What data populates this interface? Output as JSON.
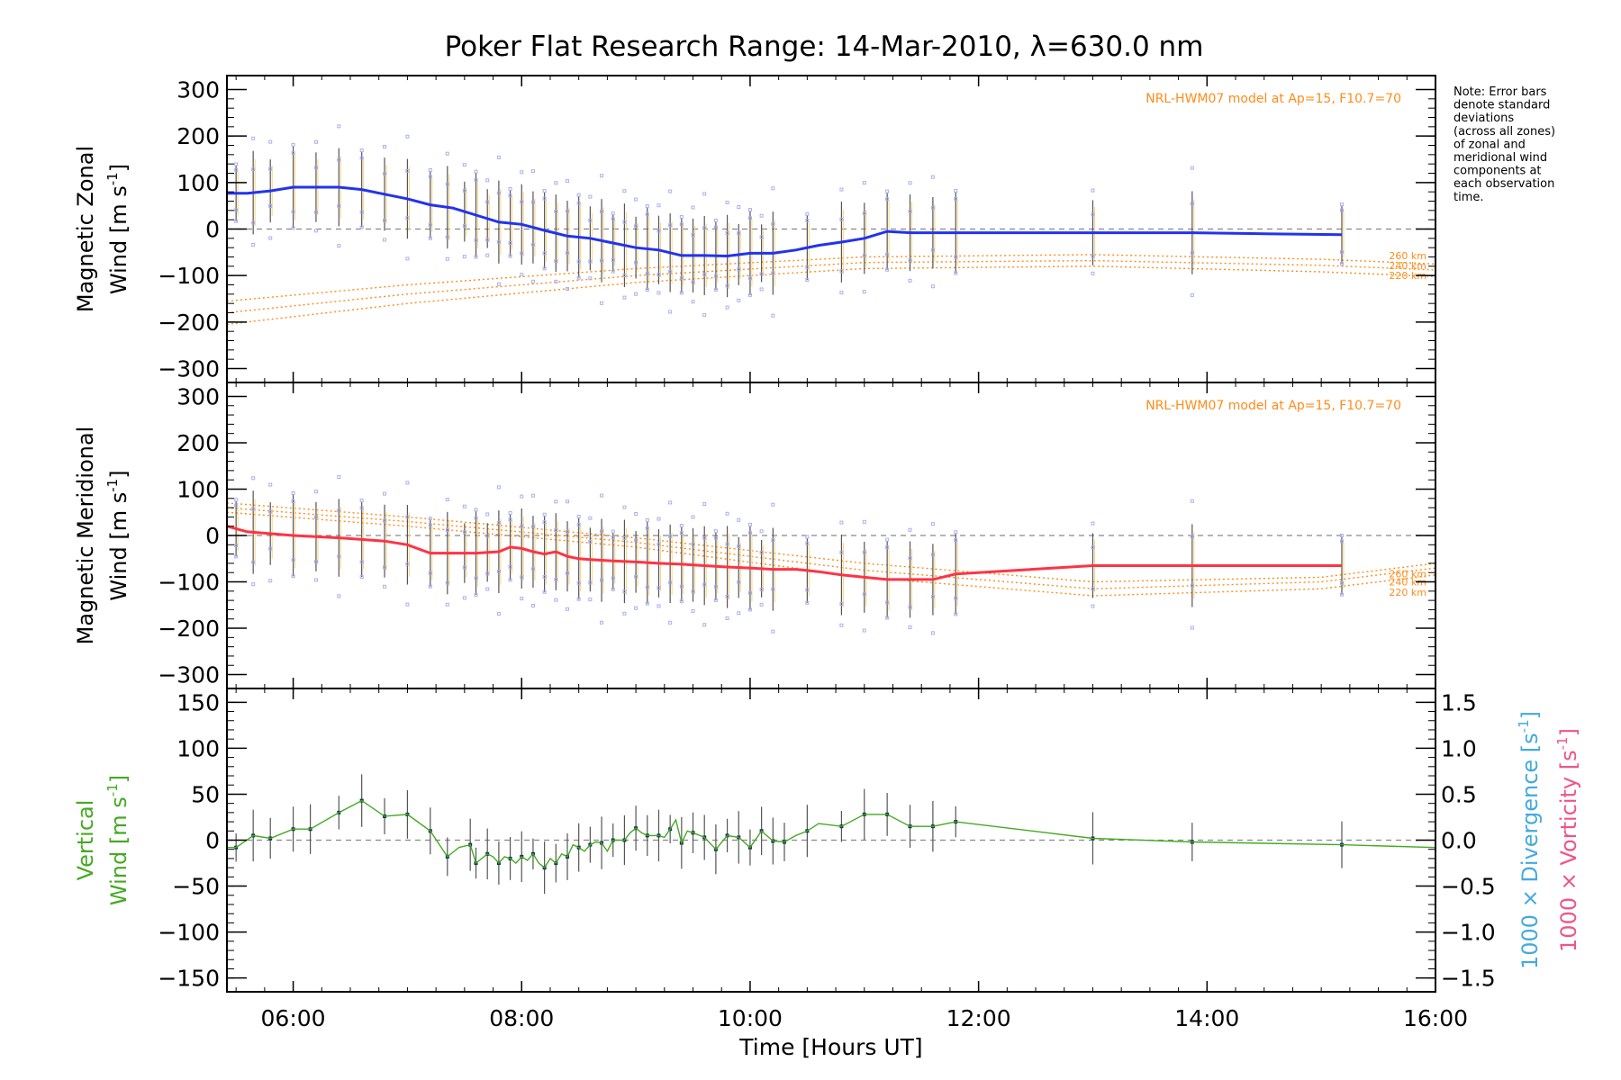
{
  "title": "Poker Flat Research Range: 14-Mar-2010, λ=630.0 nm",
  "note_lines": [
    "Note: Error bars",
    "denote standard",
    "deviations",
    "(across all zones)",
    "of zonal and",
    "meridional wind",
    "components at",
    "each observation",
    "time."
  ],
  "colors": {
    "zonal": "#2233ee",
    "meridional": "#ff3344",
    "vertical": "#44aa22",
    "model": "#ff8c1a",
    "scatter": "#aab0ee",
    "divergence": "#44aadd",
    "vorticity": "#ee5588",
    "errorbar": "#555555",
    "dashed": "#888888"
  },
  "chart_data": [
    {
      "type": "line",
      "panel": "zonal",
      "ylabel_line1": "Magnetic Zonal",
      "ylabel_line2": "Wind [m s",
      "ylabel_sup": "-1",
      "ylabel_close": "]",
      "xlim": [
        5.42,
        16.0
      ],
      "ylim": [
        -330,
        330
      ],
      "yticks": [
        300,
        200,
        100,
        0,
        -100,
        -200,
        -300
      ],
      "ytick_labels": [
        "300",
        "200",
        "100",
        "0",
        "−100",
        "−200",
        "−300"
      ],
      "model_label": "NRL-HWM07 model at Ap=15, F10.7=70",
      "model_altitude_labels": [
        "260 km",
        "240 km",
        "220 km"
      ],
      "series": {
        "name": "Magnetic Zonal Wind",
        "x": [
          5.42,
          5.6,
          5.8,
          6.0,
          6.2,
          6.4,
          6.6,
          6.8,
          7.0,
          7.2,
          7.4,
          7.6,
          7.8,
          8.0,
          8.2,
          8.4,
          8.6,
          8.8,
          9.0,
          9.2,
          9.4,
          9.6,
          9.8,
          10.0,
          10.2,
          10.4,
          10.6,
          10.8,
          11.0,
          11.2,
          11.4,
          11.6,
          11.8,
          13.0,
          13.87,
          14.5,
          15.18
        ],
        "y": [
          77,
          77,
          82,
          90,
          90,
          90,
          85,
          75,
          65,
          52,
          45,
          30,
          15,
          10,
          -3,
          -15,
          -20,
          -30,
          -40,
          -45,
          -57,
          -57,
          -58,
          -52,
          -52,
          -45,
          -35,
          -28,
          -20,
          -5,
          -8,
          -8,
          -8,
          -8,
          -8,
          -10,
          -12
        ]
      },
      "models": [
        {
          "name": "260 km",
          "x": [
            5.42,
            7.0,
            9.0,
            11.0,
            13.0,
            15.0,
            16.0
          ],
          "y": [
            -155,
            -120,
            -85,
            -60,
            -55,
            -65,
            -75
          ]
        },
        {
          "name": "240 km",
          "x": [
            5.42,
            7.0,
            9.0,
            11.0,
            13.0,
            15.0,
            16.0
          ],
          "y": [
            -180,
            -140,
            -100,
            -72,
            -68,
            -78,
            -88
          ]
        },
        {
          "name": "220 km",
          "x": [
            5.42,
            7.0,
            9.0,
            11.0,
            13.0,
            15.0,
            16.0
          ],
          "y": [
            -205,
            -160,
            -115,
            -85,
            -80,
            -92,
            -102
          ]
        }
      ],
      "errorbar_x": [
        5.5,
        5.65,
        5.8,
        6.0,
        6.2,
        6.4,
        6.6,
        6.8,
        7.0,
        7.2,
        7.35,
        7.5,
        7.6,
        7.7,
        7.8,
        7.9,
        8.0,
        8.1,
        8.2,
        8.3,
        8.4,
        8.5,
        8.6,
        8.7,
        8.8,
        8.9,
        9.0,
        9.1,
        9.2,
        9.3,
        9.4,
        9.5,
        9.6,
        9.7,
        9.8,
        9.9,
        10.0,
        10.1,
        10.2,
        10.5,
        10.8,
        11.0,
        11.2,
        11.4,
        11.6,
        11.8,
        13.0,
        13.87,
        15.18
      ],
      "errorbar_half": 75
    },
    {
      "type": "line",
      "panel": "meridional",
      "ylabel_line1": "Magnetic Meridional",
      "ylabel_line2": "Wind [m s",
      "ylabel_sup": "-1",
      "ylabel_close": "]",
      "xlim": [
        5.42,
        16.0
      ],
      "ylim": [
        -330,
        330
      ],
      "yticks": [
        300,
        200,
        100,
        0,
        -100,
        -200,
        -300
      ],
      "ytick_labels": [
        "300",
        "200",
        "100",
        "0",
        "−100",
        "−200",
        "−300"
      ],
      "model_label": "NRL-HWM07 model at Ap=15, F10.7=70",
      "model_altitude_labels": [
        "260 km",
        "240 km",
        "220 km"
      ],
      "series": {
        "name": "Magnetic Meridional Wind",
        "x": [
          5.42,
          5.6,
          6.0,
          6.4,
          6.8,
          7.0,
          7.2,
          7.4,
          7.6,
          7.8,
          7.9,
          8.0,
          8.1,
          8.2,
          8.3,
          8.4,
          8.5,
          8.6,
          8.8,
          9.0,
          9.2,
          9.4,
          9.6,
          9.8,
          10.0,
          10.2,
          10.4,
          10.6,
          10.8,
          11.0,
          11.2,
          11.4,
          11.6,
          11.8,
          13.0,
          13.87,
          15.18
        ],
        "y": [
          20,
          8,
          0,
          -5,
          -12,
          -20,
          -38,
          -38,
          -38,
          -35,
          -25,
          -28,
          -35,
          -40,
          -35,
          -45,
          -50,
          -52,
          -55,
          -57,
          -60,
          -62,
          -65,
          -68,
          -70,
          -73,
          -73,
          -78,
          -85,
          -90,
          -95,
          -95,
          -95,
          -83,
          -65,
          -65,
          -65
        ]
      },
      "models": [
        {
          "name": "260 km",
          "x": [
            5.42,
            7.0,
            9.0,
            11.0,
            13.0,
            15.0,
            16.0
          ],
          "y": [
            70,
            40,
            -5,
            -60,
            -100,
            -90,
            -60
          ]
        },
        {
          "name": "240 km",
          "x": [
            5.42,
            7.0,
            9.0,
            11.0,
            13.0,
            15.0,
            16.0
          ],
          "y": [
            60,
            30,
            -15,
            -75,
            -115,
            -100,
            -70
          ]
        },
        {
          "name": "220 km",
          "x": [
            5.42,
            7.0,
            9.0,
            11.0,
            13.0,
            15.0,
            16.0
          ],
          "y": [
            50,
            20,
            -25,
            -90,
            -130,
            -115,
            -85
          ]
        }
      ],
      "errorbar_x": [
        5.5,
        5.65,
        5.8,
        6.0,
        6.2,
        6.4,
        6.6,
        6.8,
        7.0,
        7.2,
        7.35,
        7.5,
        7.6,
        7.7,
        7.8,
        7.9,
        8.0,
        8.1,
        8.2,
        8.3,
        8.4,
        8.5,
        8.6,
        8.7,
        8.8,
        8.9,
        9.0,
        9.1,
        9.2,
        9.3,
        9.4,
        9.5,
        9.6,
        9.7,
        9.8,
        9.9,
        10.0,
        10.1,
        10.2,
        10.5,
        10.8,
        11.0,
        11.2,
        11.4,
        11.6,
        11.8,
        13.0,
        13.87,
        15.18
      ],
      "errorbar_half": 75
    },
    {
      "type": "line",
      "panel": "vertical",
      "ylabel_line1": "Vertical",
      "ylabel_line2": "Wind [m s",
      "ylabel_sup": "-1",
      "ylabel_close": "]",
      "xlim": [
        5.42,
        16.0
      ],
      "ylim": [
        -165,
        165
      ],
      "yticks": [
        150,
        100,
        50,
        0,
        -50,
        -100,
        -150
      ],
      "ytick_labels": [
        "150",
        "100",
        "50",
        "0",
        "−50",
        "−100",
        "−150"
      ],
      "right_axis": {
        "ylim": [
          -1.65,
          1.65
        ],
        "ticks": [
          1.5,
          1.0,
          0.5,
          0.0,
          -0.5,
          -1.0,
          -1.5
        ],
        "tick_labels": [
          "1.5",
          "1.0",
          "0.5",
          "0.0",
          "−0.5",
          "−1.0",
          "−1.5"
        ],
        "label_divergence": "1000 × Divergence [s",
        "label_vorticity": "1000 × Vorticity [s",
        "label_sup": "-1",
        "label_close": "]"
      },
      "xlabel": "Time [Hours UT]",
      "xticks": [
        6,
        8,
        10,
        12,
        14,
        16
      ],
      "xtick_labels": [
        "06:00",
        "08:00",
        "10:00",
        "12:00",
        "14:00",
        "16:00"
      ],
      "series": {
        "name": "Vertical Wind",
        "x": [
          5.42,
          5.5,
          5.65,
          5.8,
          6.0,
          6.15,
          6.4,
          6.6,
          6.8,
          7.0,
          7.2,
          7.35,
          7.45,
          7.55,
          7.6,
          7.65,
          7.7,
          7.75,
          7.8,
          7.85,
          7.9,
          7.95,
          8.0,
          8.05,
          8.1,
          8.15,
          8.2,
          8.25,
          8.3,
          8.35,
          8.4,
          8.45,
          8.5,
          8.55,
          8.6,
          8.65,
          8.7,
          8.75,
          8.8,
          8.85,
          8.9,
          8.95,
          9.0,
          9.05,
          9.1,
          9.15,
          9.2,
          9.25,
          9.3,
          9.35,
          9.4,
          9.45,
          9.5,
          9.6,
          9.7,
          9.8,
          9.9,
          10.0,
          10.1,
          10.2,
          10.3,
          10.4,
          10.5,
          10.6,
          10.8,
          11.0,
          11.2,
          11.4,
          11.6,
          11.8,
          13.0,
          13.87,
          15.18,
          16.0
        ],
        "y": [
          -8,
          -8,
          5,
          2,
          12,
          12,
          30,
          43,
          26,
          28,
          10,
          -18,
          -8,
          -5,
          -25,
          -20,
          -15,
          -18,
          -25,
          -18,
          -20,
          -25,
          -18,
          -22,
          -15,
          -25,
          -30,
          -20,
          -25,
          -15,
          -18,
          -5,
          -8,
          -12,
          -5,
          -2,
          -3,
          -12,
          0,
          0,
          0,
          8,
          13,
          8,
          5,
          5,
          5,
          3,
          12,
          22,
          -3,
          10,
          8,
          3,
          -10,
          5,
          3,
          -8,
          10,
          -1,
          -2,
          5,
          10,
          18,
          15,
          28,
          28,
          15,
          15,
          20,
          2,
          -2,
          -5,
          -8
        ]
      },
      "errorbar_x": [
        5.5,
        5.65,
        5.8,
        6.0,
        6.15,
        6.4,
        6.6,
        6.8,
        7.0,
        7.2,
        7.35,
        7.55,
        7.6,
        7.7,
        7.8,
        7.9,
        8.0,
        8.1,
        8.2,
        8.3,
        8.4,
        8.5,
        8.6,
        8.7,
        8.8,
        8.9,
        9.0,
        9.1,
        9.2,
        9.3,
        9.4,
        9.5,
        9.6,
        9.7,
        9.8,
        9.9,
        10.0,
        10.1,
        10.2,
        10.3,
        10.5,
        10.8,
        11.0,
        11.2,
        11.4,
        11.6,
        11.8,
        13.0,
        13.87,
        15.18
      ],
      "errorbar_half": 22
    }
  ]
}
